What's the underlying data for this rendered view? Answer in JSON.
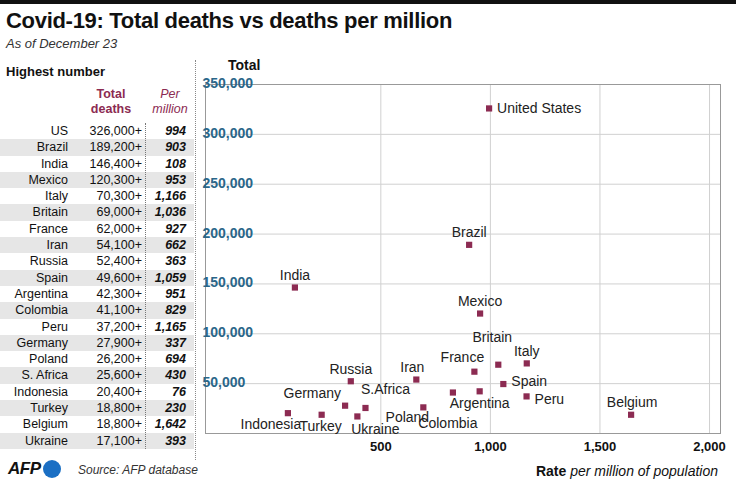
{
  "chart_data": {
    "type": "scatter",
    "title": "Covid-19: Total deaths vs deaths per million",
    "subtitle": "As of December 23",
    "table_title": "Highest number",
    "table_columns": [
      "Total deaths",
      "Per million"
    ],
    "y_label": "Total",
    "x_label": "Rate",
    "x_label_note": "per million of population",
    "source": "Source: AFP database",
    "logo": "AFP",
    "categories": [
      "US",
      "Brazil",
      "India",
      "Mexico",
      "Italy",
      "Britain",
      "France",
      "Iran",
      "Russia",
      "Spain",
      "Argentina",
      "Colombia",
      "Peru",
      "Germany",
      "Poland",
      "S. Africa",
      "Indonesia",
      "Turkey",
      "Belgium",
      "Ukraine"
    ],
    "labels": [
      "United States",
      "Brazil",
      "India",
      "Mexico",
      "Italy",
      "Britain",
      "France",
      "Iran",
      "Russia",
      "Spain",
      "Argentina",
      "Colombia",
      "Peru",
      "Germany",
      "Poland",
      "S.Africa",
      "Indonesia",
      "Turkey",
      "Belgium",
      "Ukraine"
    ],
    "x": [
      994,
      903,
      108,
      953,
      1166,
      1036,
      927,
      662,
      363,
      1059,
      951,
      829,
      1165,
      337,
      694,
      430,
      76,
      230,
      1642,
      393
    ],
    "x_labels": [
      "994",
      "903",
      "108",
      "953",
      "1,166",
      "1,036",
      "927",
      "662",
      "363",
      "1,059",
      "951",
      "829",
      "1,165",
      "337",
      "694",
      "430",
      "76",
      "230",
      "1,642",
      "393"
    ],
    "values": [
      326000,
      189200,
      146400,
      120300,
      70300,
      69000,
      62000,
      54100,
      52400,
      49600,
      42300,
      41100,
      37200,
      27900,
      26200,
      25600,
      20400,
      18800,
      18800,
      17100
    ],
    "value_labels": [
      "326,000+",
      "189,200+",
      "146,400+",
      "120,300+",
      "70,300+",
      "69,000+",
      "62,000+",
      "54,100+",
      "52,400+",
      "49,600+",
      "42,300+",
      "41,100+",
      "37,200+",
      "27,900+",
      "26,200+",
      "25,600+",
      "20,400+",
      "18,800+",
      "18,800+",
      "17,100+"
    ],
    "color": "#8c2b52",
    "marker": "square",
    "grid": true,
    "xlim": [
      -300,
      2050
    ],
    "xticks": [
      500,
      {
        "value": 1000,
        "label": "1,000"
      },
      {
        "value": 1500,
        "label": "1,500"
      },
      {
        "value": 2000,
        "label": "2,000"
      }
    ],
    "ylim": [
      0,
      350000
    ],
    "yticks": [
      {
        "value": 50000,
        "label": "50,000"
      },
      {
        "value": 100000,
        "label": "100,000"
      },
      {
        "value": 150000,
        "label": "150,000"
      },
      {
        "value": 200000,
        "label": "200,000"
      },
      {
        "value": 250000,
        "label": "250,000"
      },
      {
        "value": 300000,
        "label": "300,000"
      },
      {
        "value": 350000,
        "label": "350,000"
      }
    ]
  }
}
